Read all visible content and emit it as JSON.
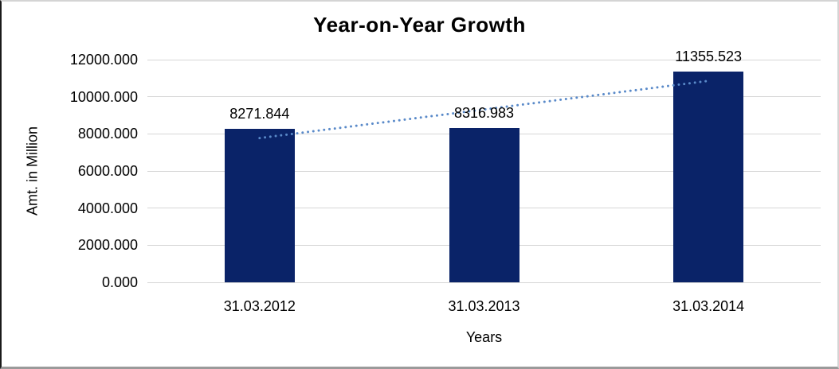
{
  "chart_data": {
    "type": "bar",
    "title": "Year-on-Year Growth",
    "xlabel": "Years",
    "ylabel": "Amt. in Million",
    "categories": [
      "31.03.2012",
      "31.03.2013",
      "31.03.2014"
    ],
    "values": [
      8271.844,
      8316.983,
      11355.523
    ],
    "value_labels": [
      "8271.844",
      "8316.983",
      "11355.523"
    ],
    "y_ticks": [
      {
        "value": 0,
        "label": "0.000"
      },
      {
        "value": 2000,
        "label": "2000.000"
      },
      {
        "value": 4000,
        "label": "4000.000"
      },
      {
        "value": 6000,
        "label": "6000.000"
      },
      {
        "value": 8000,
        "label": "8000.000"
      },
      {
        "value": 10000,
        "label": "10000.000"
      },
      {
        "value": 12000,
        "label": "12000.000"
      }
    ],
    "ylim": [
      0,
      12000
    ],
    "grid": true,
    "legend": false,
    "trendline": {
      "type": "linear",
      "style": "dotted"
    },
    "colors": {
      "bar": "#0A2368",
      "trendline": "#5A8AC9",
      "gridline": "#D6D6D6",
      "text": "#000000",
      "background": "#FFFFFF"
    }
  }
}
